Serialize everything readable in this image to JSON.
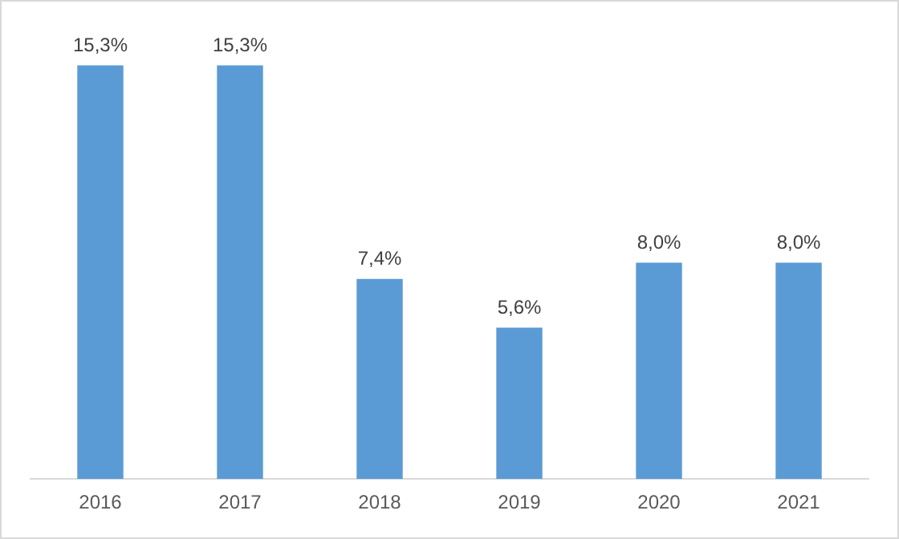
{
  "chart_data": {
    "type": "bar",
    "categories": [
      "2016",
      "2017",
      "2018",
      "2019",
      "2020",
      "2021"
    ],
    "values": [
      15.3,
      15.3,
      7.4,
      5.6,
      8.0,
      8.0
    ],
    "value_labels": [
      "15,3%",
      "15,3%",
      "7,4%",
      "5,6%",
      "8,0%",
      "8,0%"
    ],
    "color": "#5b9bd5",
    "grid": false,
    "legend": false
  }
}
